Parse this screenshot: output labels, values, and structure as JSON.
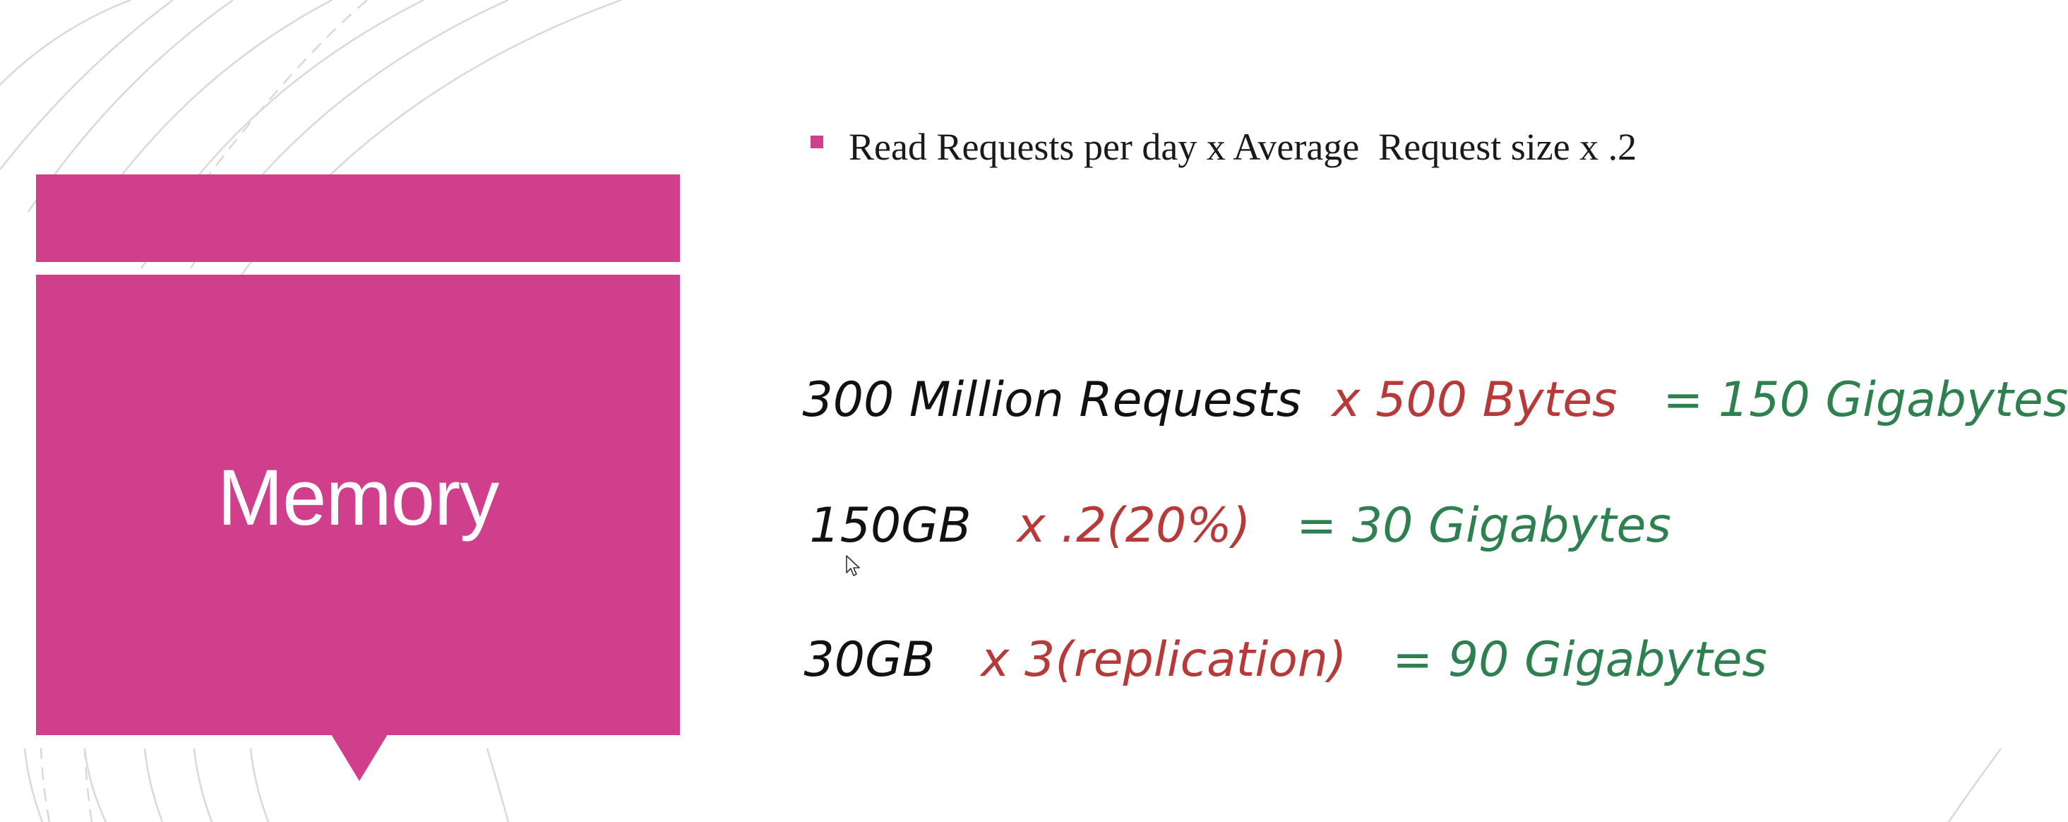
{
  "slide": {
    "title": "Memory",
    "bullet": "Read Requests per day x Average  Request size x .2",
    "calculations": [
      {
        "operand": "300 Million Requests",
        "multiplier": "x 500 Bytes",
        "result": "= 150 Gigabytes"
      },
      {
        "operand": "150GB",
        "multiplier": "x .2(20%)",
        "result": "= 30 Gigabytes"
      },
      {
        "operand": "30GB",
        "multiplier": "x 3(replication)",
        "result": "= 90 Gigabytes"
      }
    ]
  },
  "colors": {
    "accent": "#CF3F8B",
    "operand_text": "#111111",
    "multiplier_text": "#B63A3A",
    "result_text": "#2F8050"
  }
}
